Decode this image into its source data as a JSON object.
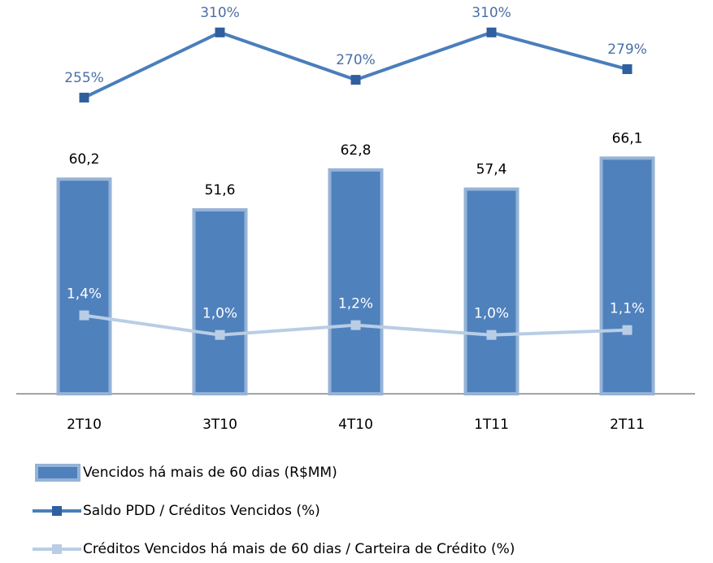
{
  "chart_data": {
    "type": "bar",
    "categories": [
      "2T10",
      "3T10",
      "4T10",
      "1T11",
      "2T11"
    ],
    "ylim": [
      0,
      110
    ],
    "y2lim": [
      5,
      336
    ],
    "y3lim": [
      -0.2,
      7.8
    ],
    "series": [
      {
        "name": "Vencidos há mais de 60 dias (R$MM)",
        "type": "bar",
        "color": "#4f81bd",
        "values": [
          60.2,
          51.6,
          62.8,
          57.4,
          66.1
        ],
        "value_labels": [
          "60,2",
          "51,6",
          "62,8",
          "57,4",
          "66,1"
        ]
      },
      {
        "name": "Saldo PDD / Créditos Vencidos (%)",
        "type": "line",
        "axis": "y2",
        "color": "#4a7ebb",
        "values": [
          255,
          310,
          270,
          310,
          279
        ],
        "value_labels": [
          "255%",
          "310%",
          "270%",
          "310%",
          "279%"
        ]
      },
      {
        "name": "Créditos Vencidos há mais de 60 dias / Carteira de Crédito (%)",
        "type": "line",
        "axis": "y3",
        "color": "#b9cde5",
        "values": [
          1.4,
          1.0,
          1.2,
          1.0,
          1.1
        ],
        "value_labels": [
          "1,4%",
          "1,0%",
          "1,2%",
          "1,0%",
          "1,1%"
        ]
      }
    ]
  }
}
